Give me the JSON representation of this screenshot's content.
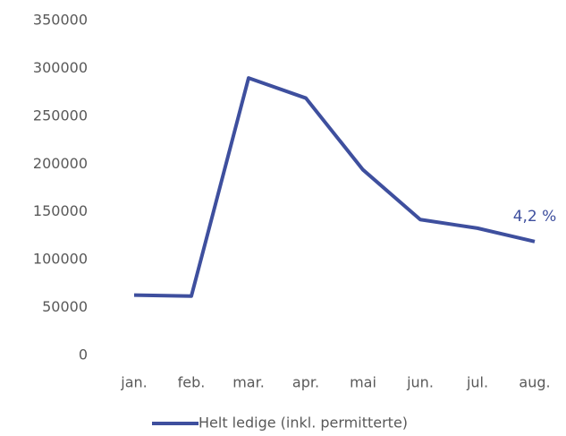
{
  "chart_data": {
    "type": "line",
    "categories": [
      "jan.",
      "feb.",
      "mar.",
      "apr.",
      "mai",
      "jun.",
      "jul.",
      "aug."
    ],
    "series": [
      {
        "name": "Helt ledige (inkl. permitterte)",
        "color": "#3e4f9e",
        "values": [
          63000,
          62000,
          290000,
          269000,
          194000,
          142000,
          133000,
          119000
        ]
      }
    ],
    "annotation": "4,2 %",
    "ylim": [
      0,
      350000
    ],
    "yticks": [
      0,
      50000,
      100000,
      150000,
      200000,
      250000,
      300000,
      350000
    ],
    "grid": false,
    "legend": "bottom"
  }
}
